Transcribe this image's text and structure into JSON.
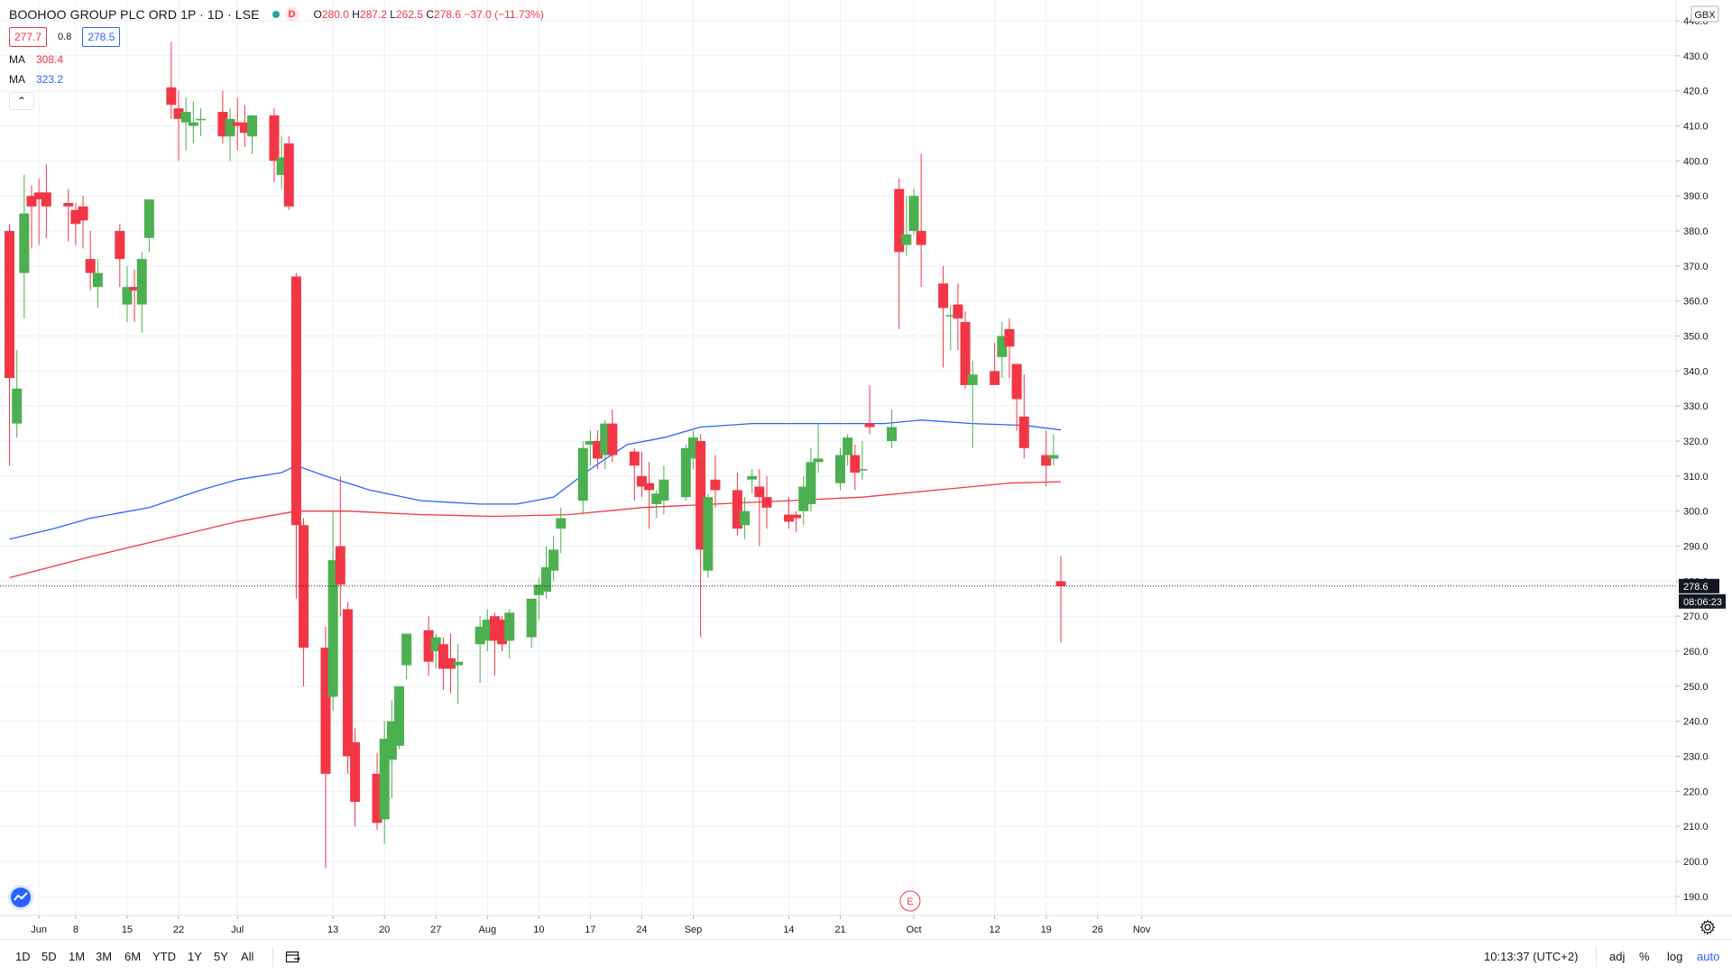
{
  "header": {
    "symbol": "BOOHOO GROUP PLC ORD 1P · 1D · LSE",
    "badge": "D",
    "ohlc": {
      "o_label": "O",
      "o": "280.0",
      "h_label": "H",
      "h": "287.2",
      "l_label": "L",
      "l": "262.5",
      "c_label": "C",
      "c": "278.6",
      "change": "−37.0 (−11.73%)"
    },
    "bid": "277.7",
    "spread": "0.8",
    "ask": "278.5",
    "collapse_glyph": "⌃"
  },
  "indicators": [
    {
      "label": "MA",
      "value": "308.4",
      "color": "#f23645"
    },
    {
      "label": "MA",
      "value": "323.2",
      "color": "#2962ff"
    }
  ],
  "currency_label": "GBX",
  "last_price_label": "278.6",
  "countdown_label": "08:06:23",
  "earnings_marker": "E",
  "bottom_bar": {
    "ranges": [
      "1D",
      "5D",
      "1M",
      "3M",
      "6M",
      "YTD",
      "1Y",
      "5Y",
      "All"
    ],
    "clock": "10:13:37 (UTC+2)",
    "adj": "adj",
    "percent": "%",
    "log": "log",
    "auto": "auto"
  },
  "colors": {
    "up": "#4caf50",
    "down": "#f23645",
    "ma_short": "#f23645",
    "ma_long": "#2962ff",
    "grid": "#eef0f3"
  },
  "chart_data": {
    "type": "candlestick",
    "title": "BOOHOO GROUP PLC ORD 1P · 1D · LSE",
    "ylim": [
      185,
      442
    ],
    "y_ticks": [
      190,
      200,
      210,
      220,
      230,
      240,
      250,
      260,
      270,
      280,
      290,
      300,
      310,
      320,
      330,
      340,
      350,
      360,
      370,
      380,
      390,
      400,
      410,
      420,
      430,
      440
    ],
    "x_ticks": [
      {
        "label": "Jun",
        "day": 3
      },
      {
        "label": "8",
        "day": 8
      },
      {
        "label": "15",
        "day": 15
      },
      {
        "label": "22",
        "day": 22
      },
      {
        "label": "Jul",
        "day": 30
      },
      {
        "label": "13",
        "day": 43
      },
      {
        "label": "20",
        "day": 50
      },
      {
        "label": "27",
        "day": 57
      },
      {
        "label": "Aug",
        "day": 64
      },
      {
        "label": "10",
        "day": 71
      },
      {
        "label": "17",
        "day": 78
      },
      {
        "label": "24",
        "day": 85
      },
      {
        "label": "Sep",
        "day": 92
      },
      {
        "label": "14",
        "day": 105
      },
      {
        "label": "21",
        "day": 112
      },
      {
        "label": "Oct",
        "day": 122
      },
      {
        "label": "12",
        "day": 133
      },
      {
        "label": "19",
        "day": 140
      },
      {
        "label": "26",
        "day": 147
      },
      {
        "label": "Nov",
        "day": 153
      }
    ],
    "candles": [
      {
        "d": -1,
        "o": 380,
        "h": 382,
        "l": 313,
        "c": 338
      },
      {
        "d": 0,
        "o": 325,
        "h": 346,
        "l": 321,
        "c": 335
      },
      {
        "d": 1,
        "o": 368,
        "h": 396,
        "l": 355,
        "c": 385
      },
      {
        "d": 2,
        "o": 390,
        "h": 393,
        "l": 375,
        "c": 387
      },
      {
        "d": 3,
        "o": 391,
        "h": 395,
        "l": 376,
        "c": 389
      },
      {
        "d": 4,
        "o": 391,
        "h": 399,
        "l": 378,
        "c": 387
      },
      {
        "d": 7,
        "o": 388,
        "h": 392,
        "l": 377,
        "c": 387
      },
      {
        "d": 8,
        "o": 386,
        "h": 388,
        "l": 376,
        "c": 382
      },
      {
        "d": 9,
        "o": 387,
        "h": 390,
        "l": 375,
        "c": 383
      },
      {
        "d": 10,
        "o": 372,
        "h": 380,
        "l": 363,
        "c": 368
      },
      {
        "d": 11,
        "o": 364,
        "h": 372,
        "l": 358,
        "c": 368
      },
      {
        "d": 14,
        "o": 380,
        "h": 382,
        "l": 364,
        "c": 372
      },
      {
        "d": 15,
        "o": 359,
        "h": 370,
        "l": 354,
        "c": 364
      },
      {
        "d": 16,
        "o": 364,
        "h": 369,
        "l": 354,
        "c": 363
      },
      {
        "d": 17,
        "o": 359,
        "h": 374,
        "l": 351,
        "c": 372
      },
      {
        "d": 18,
        "o": 378,
        "h": 389,
        "l": 374,
        "c": 389
      },
      {
        "d": 21,
        "o": 421,
        "h": 434,
        "l": 412,
        "c": 416
      },
      {
        "d": 22,
        "o": 415,
        "h": 420,
        "l": 400,
        "c": 412
      },
      {
        "d": 23,
        "o": 411,
        "h": 418,
        "l": 403,
        "c": 414
      },
      {
        "d": 24,
        "o": 410,
        "h": 417,
        "l": 405,
        "c": 411
      },
      {
        "d": 25,
        "o": 412,
        "h": 415,
        "l": 407,
        "c": 412
      },
      {
        "d": 28,
        "o": 414,
        "h": 420,
        "l": 405,
        "c": 407
      },
      {
        "d": 29,
        "o": 407,
        "h": 415,
        "l": 400,
        "c": 412
      },
      {
        "d": 30,
        "o": 411,
        "h": 418,
        "l": 403,
        "c": 410
      },
      {
        "d": 31,
        "o": 411,
        "h": 416,
        "l": 404,
        "c": 408
      },
      {
        "d": 32,
        "o": 407,
        "h": 413,
        "l": 402,
        "c": 413
      },
      {
        "d": 35,
        "o": 413,
        "h": 415,
        "l": 394,
        "c": 400
      },
      {
        "d": 36,
        "o": 396,
        "h": 407,
        "l": 392,
        "c": 401
      },
      {
        "d": 37,
        "o": 405,
        "h": 407,
        "l": 386,
        "c": 387
      },
      {
        "d": 38,
        "o": 367,
        "h": 368,
        "l": 275,
        "c": 296
      },
      {
        "d": 39,
        "o": 296,
        "h": 298,
        "l": 250,
        "c": 261
      },
      {
        "d": 42,
        "o": 261,
        "h": 267,
        "l": 198,
        "c": 225
      },
      {
        "d": 43,
        "o": 247,
        "h": 300,
        "l": 243,
        "c": 286
      },
      {
        "d": 44,
        "o": 290,
        "h": 310,
        "l": 270,
        "c": 279
      },
      {
        "d": 45,
        "o": 272,
        "h": 274,
        "l": 225,
        "c": 230
      },
      {
        "d": 46,
        "o": 234,
        "h": 238,
        "l": 210,
        "c": 217
      },
      {
        "d": 49,
        "o": 225,
        "h": 231,
        "l": 209,
        "c": 211
      },
      {
        "d": 50,
        "o": 212,
        "h": 240,
        "l": 205,
        "c": 235
      },
      {
        "d": 51,
        "o": 229,
        "h": 246,
        "l": 218,
        "c": 240
      },
      {
        "d": 52,
        "o": 233,
        "h": 249,
        "l": 232,
        "c": 250
      },
      {
        "d": 53,
        "o": 256,
        "h": 265,
        "l": 252,
        "c": 265
      },
      {
        "d": 56,
        "o": 266,
        "h": 270,
        "l": 253,
        "c": 257
      },
      {
        "d": 57,
        "o": 260,
        "h": 265,
        "l": 255,
        "c": 264
      },
      {
        "d": 58,
        "o": 262,
        "h": 264,
        "l": 249,
        "c": 255
      },
      {
        "d": 59,
        "o": 258,
        "h": 265,
        "l": 248,
        "c": 255
      },
      {
        "d": 60,
        "o": 256,
        "h": 262,
        "l": 245,
        "c": 257
      },
      {
        "d": 63,
        "o": 262,
        "h": 270,
        "l": 251,
        "c": 267
      },
      {
        "d": 64,
        "o": 263,
        "h": 272,
        "l": 260,
        "c": 269
      },
      {
        "d": 65,
        "o": 270,
        "h": 271,
        "l": 253,
        "c": 263
      },
      {
        "d": 66,
        "o": 269,
        "h": 270,
        "l": 260,
        "c": 262
      },
      {
        "d": 67,
        "o": 263,
        "h": 272,
        "l": 258,
        "c": 271
      },
      {
        "d": 70,
        "o": 264,
        "h": 274,
        "l": 261,
        "c": 275
      },
      {
        "d": 71,
        "o": 276,
        "h": 281,
        "l": 269,
        "c": 279
      },
      {
        "d": 72,
        "o": 277,
        "h": 290,
        "l": 275,
        "c": 284
      },
      {
        "d": 73,
        "o": 283,
        "h": 293,
        "l": 280,
        "c": 289
      },
      {
        "d": 74,
        "o": 295,
        "h": 301,
        "l": 288,
        "c": 298
      },
      {
        "d": 77,
        "o": 303,
        "h": 320,
        "l": 299,
        "c": 318
      },
      {
        "d": 78,
        "o": 319,
        "h": 323,
        "l": 313,
        "c": 320
      },
      {
        "d": 79,
        "o": 320,
        "h": 323,
        "l": 312,
        "c": 315
      },
      {
        "d": 80,
        "o": 316,
        "h": 326,
        "l": 312,
        "c": 325
      },
      {
        "d": 81,
        "o": 325,
        "h": 329,
        "l": 314,
        "c": 316
      },
      {
        "d": 84,
        "o": 317,
        "h": 318,
        "l": 303,
        "c": 313
      },
      {
        "d": 85,
        "o": 310,
        "h": 317,
        "l": 304,
        "c": 307
      },
      {
        "d": 86,
        "o": 308,
        "h": 314,
        "l": 295,
        "c": 306
      },
      {
        "d": 87,
        "o": 302,
        "h": 306,
        "l": 298,
        "c": 305
      },
      {
        "d": 88,
        "o": 303,
        "h": 313,
        "l": 299,
        "c": 309
      },
      {
        "d": 91,
        "o": 304,
        "h": 319,
        "l": 303,
        "c": 318
      },
      {
        "d": 92,
        "o": 315,
        "h": 323,
        "l": 312,
        "c": 321
      },
      {
        "d": 93,
        "o": 320,
        "h": 322,
        "l": 264,
        "c": 289
      },
      {
        "d": 94,
        "o": 283,
        "h": 305,
        "l": 281,
        "c": 304
      },
      {
        "d": 95,
        "o": 309,
        "h": 316,
        "l": 301,
        "c": 306
      },
      {
        "d": 98,
        "o": 306,
        "h": 311,
        "l": 293,
        "c": 295
      },
      {
        "d": 99,
        "o": 296,
        "h": 304,
        "l": 292,
        "c": 300
      },
      {
        "d": 100,
        "o": 309,
        "h": 312,
        "l": 305,
        "c": 310
      },
      {
        "d": 101,
        "o": 307,
        "h": 312,
        "l": 290,
        "c": 304
      },
      {
        "d": 102,
        "o": 304,
        "h": 310,
        "l": 295,
        "c": 301
      },
      {
        "d": 105,
        "o": 299,
        "h": 304,
        "l": 295,
        "c": 297
      },
      {
        "d": 106,
        "o": 299,
        "h": 300,
        "l": 294,
        "c": 298
      },
      {
        "d": 107,
        "o": 300,
        "h": 310,
        "l": 296,
        "c": 307
      },
      {
        "d": 108,
        "o": 302,
        "h": 318,
        "l": 300,
        "c": 314
      },
      {
        "d": 109,
        "o": 314,
        "h": 325,
        "l": 311,
        "c": 315
      },
      {
        "d": 112,
        "o": 308,
        "h": 318,
        "l": 306,
        "c": 316
      },
      {
        "d": 113,
        "o": 316,
        "h": 322,
        "l": 313,
        "c": 321
      },
      {
        "d": 114,
        "o": 316,
        "h": 319,
        "l": 306,
        "c": 311
      },
      {
        "d": 115,
        "o": 312,
        "h": 320,
        "l": 309,
        "c": 312
      },
      {
        "d": 116,
        "o": 325,
        "h": 336,
        "l": 322,
        "c": 324
      },
      {
        "d": 119,
        "o": 320,
        "h": 329,
        "l": 318,
        "c": 324
      },
      {
        "d": 120,
        "o": 392,
        "h": 395,
        "l": 352,
        "c": 374
      },
      {
        "d": 121,
        "o": 376,
        "h": 390,
        "l": 373,
        "c": 379
      },
      {
        "d": 122,
        "o": 380,
        "h": 392,
        "l": 379,
        "c": 390
      },
      {
        "d": 123,
        "o": 380,
        "h": 402,
        "l": 364,
        "c": 376
      },
      {
        "d": 126,
        "o": 365,
        "h": 370,
        "l": 341,
        "c": 358
      },
      {
        "d": 127,
        "o": 356,
        "h": 359,
        "l": 346,
        "c": 356
      },
      {
        "d": 128,
        "o": 359,
        "h": 365,
        "l": 346,
        "c": 355
      },
      {
        "d": 129,
        "o": 354,
        "h": 357,
        "l": 335,
        "c": 336
      },
      {
        "d": 130,
        "o": 336,
        "h": 343,
        "l": 318,
        "c": 339
      },
      {
        "d": 133,
        "o": 340,
        "h": 348,
        "l": 337,
        "c": 336
      },
      {
        "d": 134,
        "o": 344,
        "h": 354,
        "l": 338,
        "c": 350
      },
      {
        "d": 135,
        "o": 352,
        "h": 355,
        "l": 338,
        "c": 347
      },
      {
        "d": 136,
        "o": 342,
        "h": 342,
        "l": 323,
        "c": 332
      },
      {
        "d": 137,
        "o": 327,
        "h": 339,
        "l": 315,
        "c": 318
      },
      {
        "d": 140,
        "o": 316,
        "h": 323,
        "l": 307,
        "c": 313
      },
      {
        "d": 141,
        "o": 315,
        "h": 322,
        "l": 313,
        "c": 316
      },
      {
        "d": 142,
        "o": 280,
        "h": 287.2,
        "l": 262.5,
        "c": 278.6
      }
    ],
    "series": [
      {
        "name": "MA",
        "color": "#f23645",
        "points": [
          [
            -1,
            281
          ],
          [
            10,
            287
          ],
          [
            20,
            292
          ],
          [
            30,
            297
          ],
          [
            38,
            300
          ],
          [
            45,
            300
          ],
          [
            55,
            299
          ],
          [
            65,
            298.5
          ],
          [
            75,
            299
          ],
          [
            85,
            301
          ],
          [
            95,
            302
          ],
          [
            105,
            303
          ],
          [
            115,
            304
          ],
          [
            125,
            306
          ],
          [
            135,
            308
          ],
          [
            142,
            308.4
          ]
        ]
      },
      {
        "name": "MA",
        "color": "#2962ff",
        "points": [
          [
            -1,
            292
          ],
          [
            5,
            295
          ],
          [
            10,
            298
          ],
          [
            18,
            301
          ],
          [
            25,
            306
          ],
          [
            30,
            309
          ],
          [
            36,
            311
          ],
          [
            38,
            313
          ],
          [
            42,
            310
          ],
          [
            48,
            306
          ],
          [
            55,
            303
          ],
          [
            63,
            302
          ],
          [
            68,
            302
          ],
          [
            73,
            304
          ],
          [
            78,
            312
          ],
          [
            83,
            319
          ],
          [
            88,
            321
          ],
          [
            93,
            324
          ],
          [
            100,
            325
          ],
          [
            108,
            325
          ],
          [
            118,
            325
          ],
          [
            123,
            326
          ],
          [
            130,
            325
          ],
          [
            137,
            324.5
          ],
          [
            142,
            323.2
          ]
        ]
      }
    ]
  }
}
